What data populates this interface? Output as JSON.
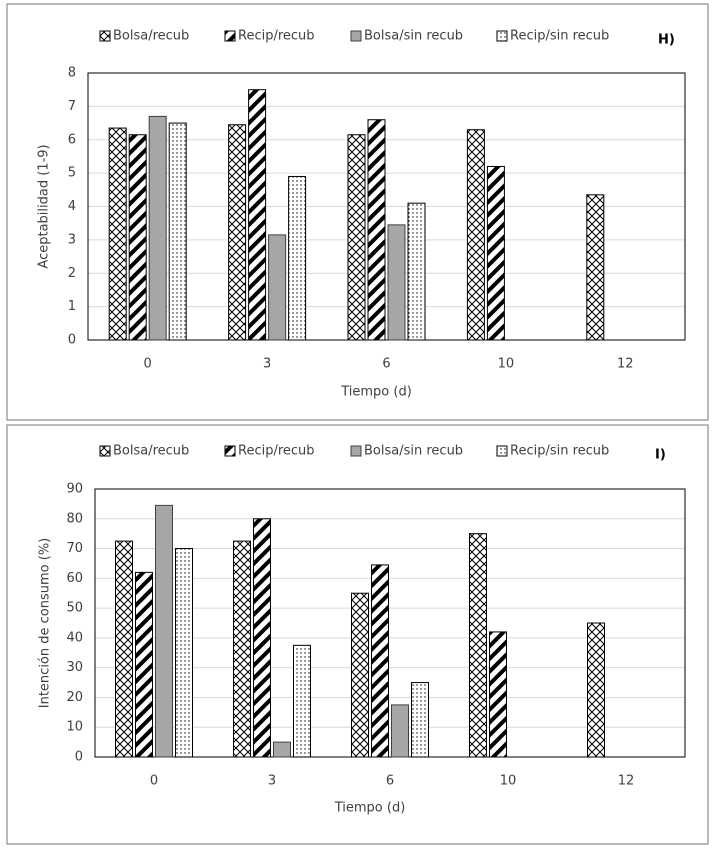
{
  "chart_data": [
    {
      "type": "bar",
      "annotation": "H)",
      "x_label": "Tiempo (d)",
      "y_label": "Aceptabilidad (1-9)",
      "categories": [
        "0",
        "3",
        "6",
        "10",
        "12"
      ],
      "series": [
        {
          "name": "Bolsa/recub",
          "color": "#000000",
          "pattern": "crosshatch",
          "values": [
            6.35,
            6.45,
            6.15,
            6.3,
            4.35
          ]
        },
        {
          "name": "Recip/recub",
          "color": "#000000",
          "pattern": "diagonal",
          "values": [
            6.15,
            7.5,
            6.6,
            5.2,
            null
          ]
        },
        {
          "name": "Bolsa/sin recub",
          "color": "#a6a6a6",
          "pattern": "solid",
          "values": [
            6.7,
            3.15,
            3.45,
            null,
            null
          ]
        },
        {
          "name": "Recip/sin recub",
          "color": "#000000",
          "pattern": "dots",
          "values": [
            6.5,
            4.9,
            4.1,
            null,
            null
          ]
        }
      ],
      "ylim": [
        0,
        8
      ],
      "yticks": [
        0,
        1,
        2,
        3,
        4,
        5,
        6,
        7,
        8
      ],
      "grid": true
    },
    {
      "type": "bar",
      "annotation": "I)",
      "x_label": "Tiempo (d)",
      "y_label": "Intención de consumo (%)",
      "categories": [
        "0",
        "3",
        "6",
        "10",
        "12"
      ],
      "series": [
        {
          "name": "Bolsa/recub",
          "color": "#000000",
          "pattern": "crosshatch",
          "values": [
            72.5,
            72.5,
            55,
            75,
            45
          ]
        },
        {
          "name": "Recip/recub",
          "color": "#000000",
          "pattern": "diagonal",
          "values": [
            62,
            80,
            64.5,
            42,
            null
          ]
        },
        {
          "name": "Bolsa/sin recub",
          "color": "#a6a6a6",
          "pattern": "solid",
          "values": [
            84.5,
            5,
            17.5,
            null,
            null
          ]
        },
        {
          "name": "Recip/sin recub",
          "color": "#000000",
          "pattern": "dots",
          "values": [
            70,
            37.5,
            25,
            null,
            null
          ]
        }
      ],
      "ylim": [
        0,
        90
      ],
      "yticks": [
        0,
        10,
        20,
        30,
        40,
        50,
        60,
        70,
        80,
        90
      ],
      "grid": true
    }
  ]
}
